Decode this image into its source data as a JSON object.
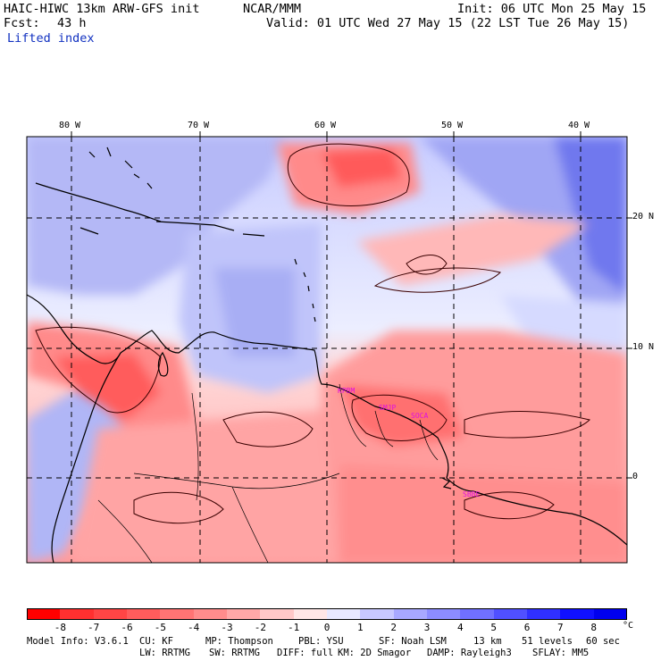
{
  "header": {
    "model_title": "HAIC-HIWC 13km ARW-GFS init",
    "org": "NCAR/MMM",
    "init": "Init: 06 UTC Mon 25 May 15",
    "fcst_label": "Fcst:",
    "fcst_value": "43 h",
    "valid": "Valid: 01 UTC Wed 27 May 15 (22 LST Tue 26 May 15)",
    "field": "Lifted index"
  },
  "map": {
    "lon_labels": [
      "80 W",
      "70 W",
      "60 W",
      "50 W",
      "40 W"
    ],
    "lat_labels": [
      "20 N",
      "10 N",
      "0"
    ],
    "stations": [
      "KPBM",
      "SMJP",
      "SOCA",
      "SBBE"
    ],
    "colors": {
      "neg_strong": "#ff2020",
      "neg_weak": "#ffd0d0",
      "neutral": "#ffffff",
      "pos_weak": "#d8dcff",
      "pos_strong": "#2020f0"
    }
  },
  "legend": {
    "ticks": [
      "-8",
      "-7",
      "-6",
      "-5",
      "-4",
      "-3",
      "-2",
      "-1",
      "0",
      "1",
      "2",
      "3",
      "4",
      "5",
      "6",
      "7",
      "8"
    ],
    "unit": "°C",
    "colors": [
      "#ff0000",
      "#ff3030",
      "#ff4545",
      "#ff5c5c",
      "#ff7474",
      "#ff8c8c",
      "#ffa8a8",
      "#ffc8c8",
      "#ffe6e6",
      "#e8e8ff",
      "#c8c8ff",
      "#a8a8ff",
      "#8c8cff",
      "#7070ff",
      "#5050ff",
      "#3030ff",
      "#1010ff",
      "#0000ee"
    ]
  },
  "info": {
    "line1": [
      "Model Info: V3.6.1",
      "CU: KF",
      "MP: Thompson",
      "PBL: YSU",
      "SF: Noah LSM",
      "13 km",
      "51 levels",
      "60 sec"
    ],
    "line2": [
      "LW: RRTMG",
      "SW: RRTMG",
      "DIFF: full",
      "KM: 2D Smagor",
      "DAMP: Rayleigh3",
      "SFLAY: MM5"
    ]
  }
}
